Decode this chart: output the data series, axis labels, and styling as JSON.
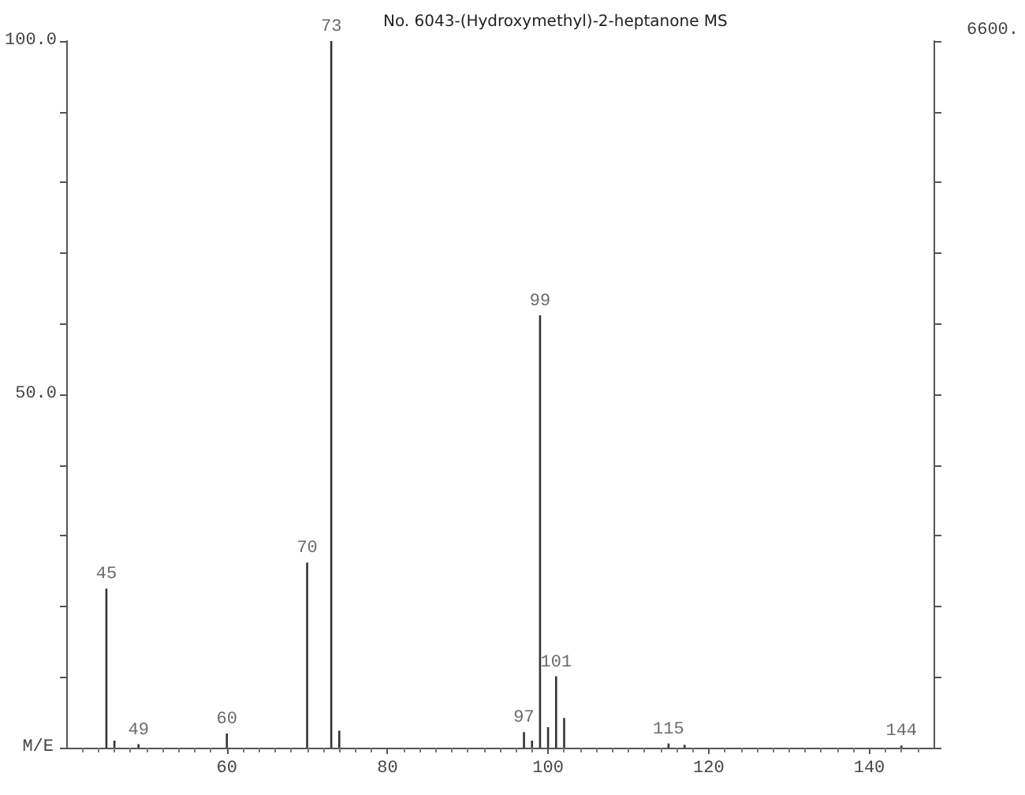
{
  "chart_data": {
    "type": "bar",
    "title": "No. 6043-(Hydroxymethyl)-2-heptanone MS",
    "xlabel": "M/E",
    "x": [
      45,
      46,
      49,
      60,
      70,
      73,
      74,
      97,
      98,
      99,
      100,
      101,
      102,
      115,
      117,
      144
    ],
    "values": [
      22.5,
      1,
      0.5,
      2,
      26.2,
      100,
      2.4,
      2.2,
      1,
      61.2,
      2.9,
      10.1,
      4.2,
      0.6,
      0.4,
      0.3
    ],
    "annotations": [
      {
        "text": "45",
        "x": 45,
        "y": 22.5
      },
      {
        "text": "49",
        "x": 49,
        "y": 0.5
      },
      {
        "text": "60",
        "x": 60,
        "y": 2
      },
      {
        "text": "70",
        "x": 70,
        "y": 26.2
      },
      {
        "text": "73",
        "x": 73,
        "y": 100
      },
      {
        "text": "97",
        "x": 97,
        "y": 2.2
      },
      {
        "text": "99",
        "x": 99,
        "y": 61.2
      },
      {
        "text": "101",
        "x": 101,
        "y": 10.1
      },
      {
        "text": "115",
        "x": 115,
        "y": 0.6
      },
      {
        "text": "144",
        "x": 144,
        "y": 0.3
      },
      "6600."
    ],
    "color": "#333333",
    "xlim": [
      40,
      148
    ],
    "xticks": [
      60,
      80,
      100,
      120,
      140
    ],
    "ylim": [
      0,
      100
    ],
    "yticks": [
      {
        "value": 0,
        "label": null
      },
      {
        "value": 10,
        "label": null
      },
      {
        "value": 20,
        "label": null
      },
      {
        "value": 30,
        "label": null
      },
      {
        "value": 40,
        "label": null
      },
      {
        "value": 50,
        "label": "50.0"
      },
      {
        "value": 60,
        "label": null
      },
      {
        "value": 70,
        "label": null
      },
      {
        "value": 80,
        "label": null
      },
      {
        "value": 90,
        "label": null
      },
      {
        "value": 100,
        "label": "100.0"
      }
    ],
    "grid": false
  }
}
